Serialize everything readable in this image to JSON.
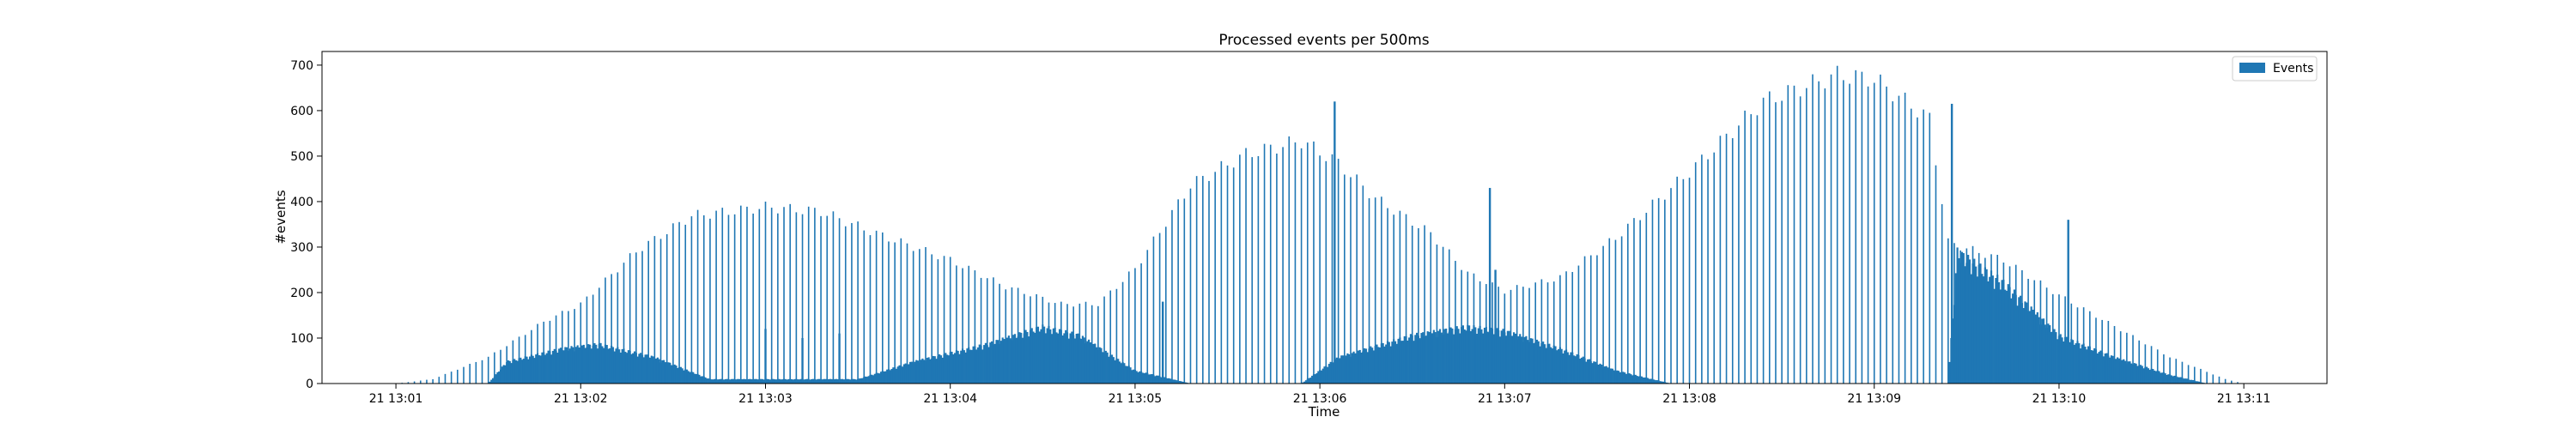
{
  "chart_data": {
    "type": "bar",
    "title": "Processed events per 500ms",
    "xlabel": "Time",
    "ylabel": "#events",
    "x_range_minutes": [
      0.6,
      11.45
    ],
    "ylim": [
      0,
      730
    ],
    "x_ticks": [
      {
        "minute": 1,
        "label": "21 13:01"
      },
      {
        "minute": 2,
        "label": "21 13:02"
      },
      {
        "minute": 3,
        "label": "21 13:03"
      },
      {
        "minute": 4,
        "label": "21 13:04"
      },
      {
        "minute": 5,
        "label": "21 13:05"
      },
      {
        "minute": 6,
        "label": "21 13:06"
      },
      {
        "minute": 7,
        "label": "21 13:07"
      },
      {
        "minute": 8,
        "label": "21 13:08"
      },
      {
        "minute": 9,
        "label": "21 13:09"
      },
      {
        "minute": 10,
        "label": "21 13:10"
      },
      {
        "minute": 11,
        "label": "21 13:11"
      }
    ],
    "y_ticks": [
      0,
      100,
      200,
      300,
      400,
      500,
      600,
      700
    ],
    "bar_interval_ms": 500,
    "color": "#1f77b4",
    "legend": {
      "label": "Events",
      "position": "top-right"
    },
    "envelope_upper": [
      [
        1.0,
        0
      ],
      [
        1.2,
        10
      ],
      [
        1.5,
        60
      ],
      [
        1.8,
        140
      ],
      [
        2.0,
        180
      ],
      [
        2.3,
        300
      ],
      [
        2.6,
        380
      ],
      [
        3.0,
        400
      ],
      [
        3.3,
        390
      ],
      [
        3.6,
        340
      ],
      [
        4.0,
        280
      ],
      [
        4.3,
        220
      ],
      [
        4.6,
        180
      ],
      [
        4.8,
        180
      ],
      [
        5.0,
        260
      ],
      [
        5.3,
        450
      ],
      [
        5.6,
        520
      ],
      [
        5.9,
        550
      ],
      [
        6.1,
        500
      ],
      [
        6.3,
        420
      ],
      [
        6.6,
        340
      ],
      [
        6.8,
        250
      ],
      [
        7.0,
        210
      ],
      [
        7.3,
        240
      ],
      [
        7.6,
        330
      ],
      [
        8.0,
        480
      ],
      [
        8.4,
        640
      ],
      [
        8.8,
        700
      ],
      [
        9.0,
        690
      ],
      [
        9.3,
        600
      ],
      [
        9.4,
        320
      ],
      [
        9.7,
        280
      ],
      [
        10.0,
        200
      ],
      [
        10.3,
        130
      ],
      [
        10.6,
        60
      ],
      [
        10.9,
        10
      ],
      [
        11.0,
        0
      ]
    ],
    "envelope_lower": [
      [
        1.5,
        0
      ],
      [
        1.6,
        50
      ],
      [
        1.9,
        80
      ],
      [
        2.1,
        90
      ],
      [
        2.4,
        60
      ],
      [
        2.7,
        10
      ],
      [
        3.5,
        10
      ],
      [
        3.8,
        50
      ],
      [
        4.2,
        90
      ],
      [
        4.5,
        130
      ],
      [
        4.7,
        110
      ],
      [
        5.0,
        30
      ],
      [
        5.3,
        0
      ],
      [
        5.9,
        0
      ],
      [
        6.1,
        60
      ],
      [
        6.5,
        110
      ],
      [
        6.8,
        130
      ],
      [
        7.0,
        120
      ],
      [
        7.3,
        80
      ],
      [
        7.6,
        30
      ],
      [
        7.9,
        0
      ],
      [
        9.4,
        0
      ],
      [
        9.45,
        300
      ],
      [
        9.7,
        230
      ],
      [
        10.0,
        110
      ],
      [
        10.3,
        60
      ],
      [
        10.6,
        20
      ],
      [
        10.8,
        0
      ]
    ],
    "spikes": [
      [
        6.08,
        620
      ],
      [
        9.42,
        615
      ],
      [
        6.92,
        430
      ],
      [
        10.05,
        360
      ],
      [
        6.95,
        250
      ],
      [
        5.15,
        180
      ],
      [
        3.0,
        120
      ],
      [
        3.2,
        100
      ],
      [
        3.4,
        110
      ]
    ]
  }
}
